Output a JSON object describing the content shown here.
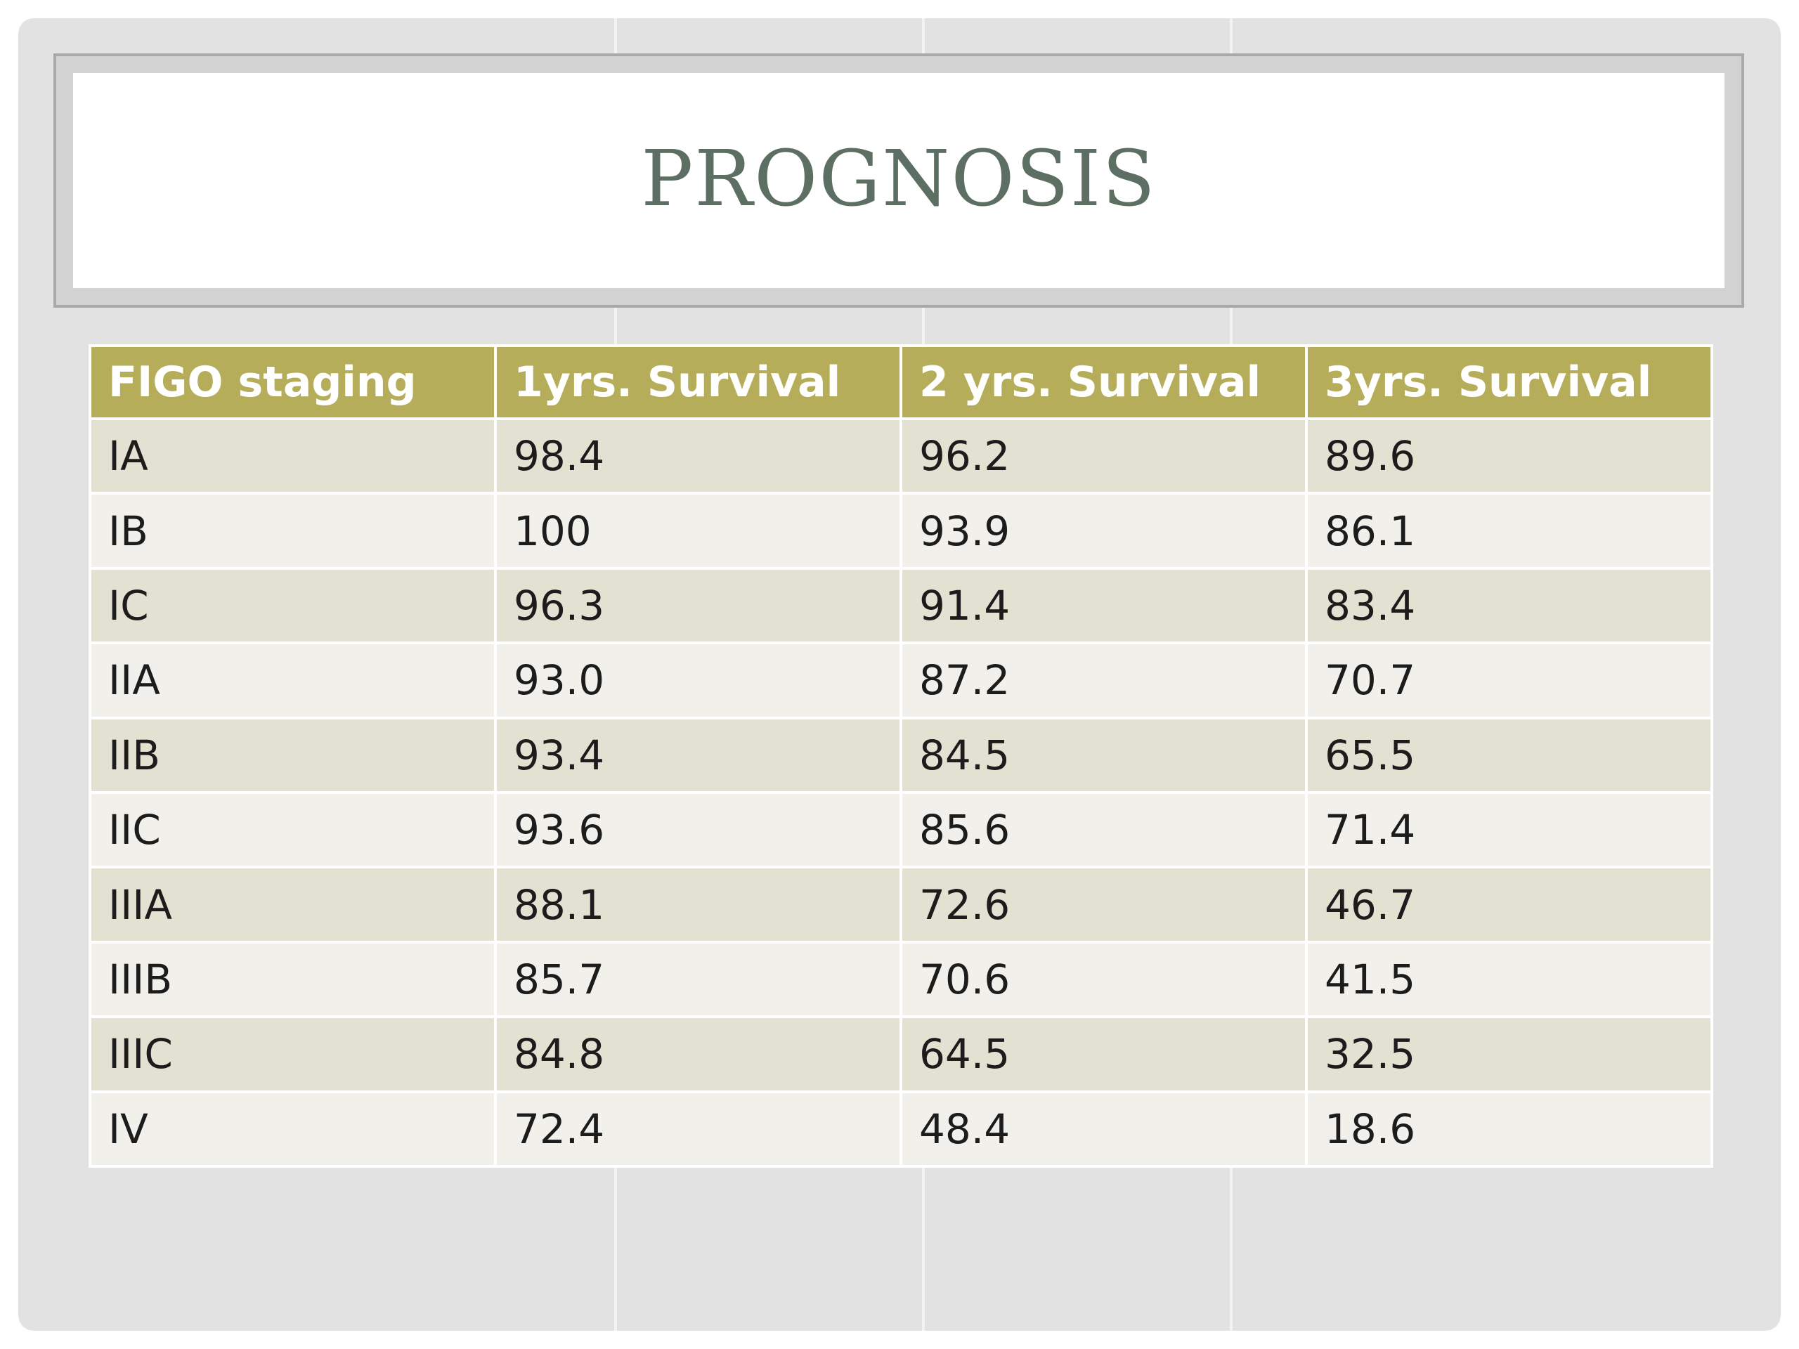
{
  "slide": {
    "title": "PROGNOSIS"
  },
  "table": {
    "headers": [
      "FIGO staging",
      "1yrs. Survival",
      "2 yrs. Survival",
      "3yrs. Survival"
    ],
    "rows": [
      [
        "IA",
        "98.4",
        "96.2",
        "89.6"
      ],
      [
        "IB",
        "100",
        "93.9",
        "86.1"
      ],
      [
        "IC",
        "96.3",
        "91.4",
        "83.4"
      ],
      [
        "IIA",
        "93.0",
        "87.2",
        "70.7"
      ],
      [
        "IIB",
        "93.4",
        "84.5",
        "65.5"
      ],
      [
        "IIC",
        "93.6",
        "85.6",
        "71.4"
      ],
      [
        "IIIA",
        "88.1",
        "72.6",
        "46.7"
      ],
      [
        "IIIB",
        "85.7",
        "70.6",
        "41.5"
      ],
      [
        "IIIC",
        "84.8",
        "64.5",
        "32.5"
      ],
      [
        "IV",
        "72.4",
        "48.4",
        "18.6"
      ]
    ]
  },
  "colors": {
    "header_bg": "#b5ad5a",
    "row_odd": "#e3e1d1",
    "row_even": "#f1f0ea",
    "title": "#5d6e63"
  }
}
